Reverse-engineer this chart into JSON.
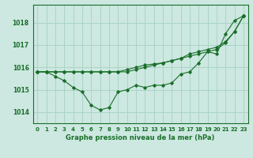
{
  "title": "Graphe pression niveau de la mer (hPa)",
  "background_color": "#cce8e0",
  "grid_color": "#aad4c8",
  "line_color": "#1a6e2a",
  "xlim": [
    -0.5,
    23.5
  ],
  "ylim": [
    1013.5,
    1018.8
  ],
  "yticks": [
    1014,
    1015,
    1016,
    1017,
    1018
  ],
  "xticks": [
    0,
    1,
    2,
    3,
    4,
    5,
    6,
    7,
    8,
    9,
    10,
    11,
    12,
    13,
    14,
    15,
    16,
    17,
    18,
    19,
    20,
    21,
    22,
    23
  ],
  "series": [
    [
      1015.8,
      1015.8,
      1015.6,
      1015.4,
      1015.1,
      1014.9,
      1014.3,
      1014.1,
      1014.2,
      1014.9,
      1015.0,
      1015.2,
      1015.1,
      1015.2,
      1015.2,
      1015.3,
      1015.7,
      1015.8,
      1016.2,
      1016.7,
      1016.6,
      1017.5,
      1018.1,
      1018.3
    ],
    [
      1015.8,
      1015.8,
      1015.8,
      1015.8,
      1015.8,
      1015.8,
      1015.8,
      1015.8,
      1015.8,
      1015.8,
      1015.8,
      1015.9,
      1016.0,
      1016.1,
      1016.2,
      1016.3,
      1016.4,
      1016.5,
      1016.6,
      1016.7,
      1016.8,
      1017.1,
      1017.6,
      1018.3
    ],
    [
      1015.8,
      1015.8,
      1015.8,
      1015.8,
      1015.8,
      1015.8,
      1015.8,
      1015.8,
      1015.8,
      1015.8,
      1015.9,
      1016.0,
      1016.1,
      1016.15,
      1016.2,
      1016.3,
      1016.4,
      1016.6,
      1016.7,
      1016.8,
      1016.9,
      1017.15,
      1017.6,
      1018.3
    ]
  ],
  "ylabel_fontsize": 5.5,
  "xlabel_fontsize": 6.0,
  "tick_fontsize": 5.0
}
